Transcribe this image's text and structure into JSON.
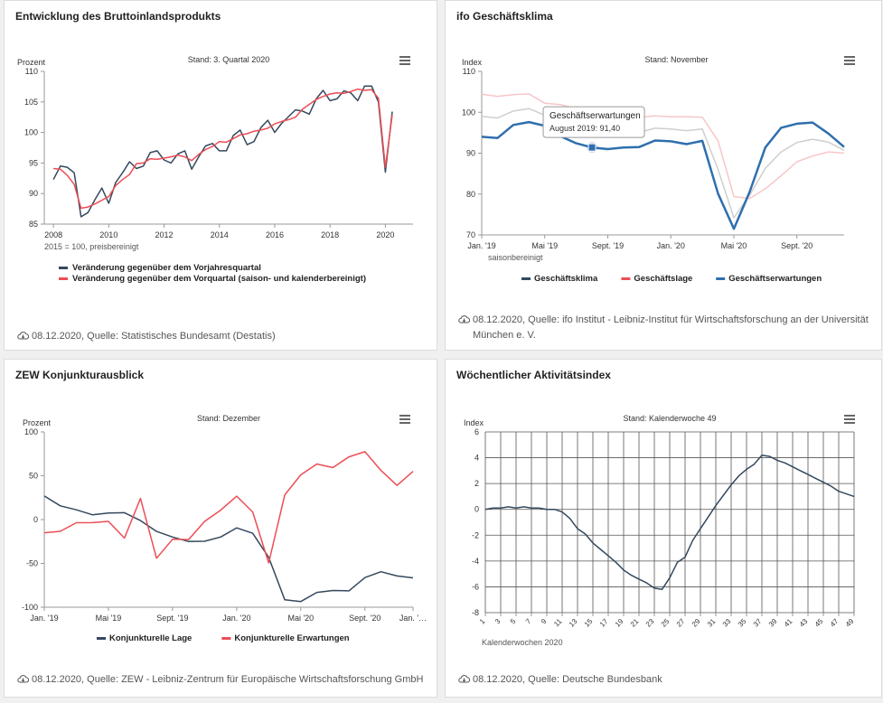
{
  "colors": {
    "dark": "#34495e",
    "red": "#ec4d55",
    "pink": "#f7c6c9",
    "gray": "#cfcfcf",
    "blue": "#2f6fae"
  },
  "cards": [
    {
      "title": "Entwicklung des Bruttoinlandsprodukts",
      "source": "08.12.2020, Quelle: Statistisches Bundesamt (Destatis)"
    },
    {
      "title": "ifo Geschäftsklima",
      "source": "08.12.2020, Quelle: ifo Institut - Leibniz-Institut für Wirtschaftsforschung an der Universität",
      "source2": "München e. V."
    },
    {
      "title": "ZEW Konjunkturausblick",
      "source": "08.12.2020, Quelle: ZEW - Leibniz-Zentrum für Europäische Wirtschaftsforschung GmbH"
    },
    {
      "title": "Wöchentlicher Aktivitätsindex",
      "source": "08.12.2020, Quelle: Deutsche Bundesbank"
    }
  ],
  "chart_data": [
    {
      "type": "line",
      "subtitle": "Stand: 3. Quartal 2020",
      "ylabel": "Prozent",
      "note": "2015 = 100, preisbereinigt",
      "xlim": [
        2007.67,
        2021.0
      ],
      "ylim": [
        85,
        110
      ],
      "yticks": [
        85,
        90,
        95,
        100,
        105,
        110
      ],
      "xticks": [
        2008,
        2010,
        2012,
        2014,
        2016,
        2018,
        2020
      ],
      "xticklabels": [
        "2008",
        "2010",
        "2012",
        "2014",
        "2016",
        "2018",
        "2020"
      ],
      "legend_position": "bottom",
      "series": [
        {
          "name": "Veränderung gegenüber dem Vorjahresquartal",
          "color": "#34495e",
          "points": [
            [
              2008.0,
              92.3
            ],
            [
              2008.25,
              94.5
            ],
            [
              2008.5,
              94.3
            ],
            [
              2008.75,
              93.4
            ],
            [
              2009.0,
              86.2
            ],
            [
              2009.25,
              86.9
            ],
            [
              2009.5,
              89.0
            ],
            [
              2009.75,
              90.9
            ],
            [
              2010.0,
              88.4
            ],
            [
              2010.25,
              91.8
            ],
            [
              2010.5,
              93.4
            ],
            [
              2010.75,
              95.2
            ],
            [
              2011.0,
              94.1
            ],
            [
              2011.25,
              94.5
            ],
            [
              2011.5,
              96.7
            ],
            [
              2011.75,
              97.0
            ],
            [
              2012.0,
              95.5
            ],
            [
              2012.25,
              95.0
            ],
            [
              2012.5,
              96.5
            ],
            [
              2012.75,
              97.0
            ],
            [
              2013.0,
              94.0
            ],
            [
              2013.25,
              96.0
            ],
            [
              2013.5,
              97.8
            ],
            [
              2013.75,
              98.2
            ],
            [
              2014.0,
              97.0
            ],
            [
              2014.25,
              97.0
            ],
            [
              2014.5,
              99.5
            ],
            [
              2014.75,
              100.4
            ],
            [
              2015.0,
              98.0
            ],
            [
              2015.25,
              98.5
            ],
            [
              2015.5,
              100.8
            ],
            [
              2015.75,
              102.0
            ],
            [
              2016.0,
              100.0
            ],
            [
              2016.25,
              101.5
            ],
            [
              2016.5,
              102.6
            ],
            [
              2016.75,
              103.7
            ],
            [
              2017.0,
              103.5
            ],
            [
              2017.25,
              103.0
            ],
            [
              2017.5,
              105.5
            ],
            [
              2017.75,
              106.9
            ],
            [
              2018.0,
              105.2
            ],
            [
              2018.25,
              105.5
            ],
            [
              2018.5,
              106.8
            ],
            [
              2018.75,
              106.5
            ],
            [
              2019.0,
              105.2
            ],
            [
              2019.25,
              107.6
            ],
            [
              2019.5,
              107.6
            ],
            [
              2019.75,
              105.0
            ],
            [
              2020.0,
              93.5
            ],
            [
              2020.25,
              103.4
            ]
          ]
        },
        {
          "name": "Veränderung gegenüber dem Vorquartal (saison- und kalenderbereinigt)",
          "color": "#ec4d55",
          "points": [
            [
              2008.0,
              94.1
            ],
            [
              2008.25,
              94.0
            ],
            [
              2008.5,
              93.0
            ],
            [
              2008.75,
              91.5
            ],
            [
              2009.0,
              87.6
            ],
            [
              2009.25,
              87.8
            ],
            [
              2009.5,
              88.3
            ],
            [
              2009.75,
              88.9
            ],
            [
              2010.0,
              89.5
            ],
            [
              2010.25,
              91.3
            ],
            [
              2010.5,
              92.3
            ],
            [
              2010.75,
              93.1
            ],
            [
              2011.0,
              94.9
            ],
            [
              2011.25,
              95.0
            ],
            [
              2011.5,
              95.7
            ],
            [
              2011.75,
              95.6
            ],
            [
              2012.0,
              95.8
            ],
            [
              2012.25,
              96.0
            ],
            [
              2012.5,
              96.3
            ],
            [
              2012.75,
              96.0
            ],
            [
              2013.0,
              95.4
            ],
            [
              2013.25,
              96.4
            ],
            [
              2013.5,
              97.2
            ],
            [
              2013.75,
              97.7
            ],
            [
              2014.0,
              98.5
            ],
            [
              2014.25,
              98.4
            ],
            [
              2014.5,
              99.0
            ],
            [
              2014.75,
              99.6
            ],
            [
              2015.0,
              99.8
            ],
            [
              2015.25,
              100.2
            ],
            [
              2015.5,
              100.4
            ],
            [
              2015.75,
              100.7
            ],
            [
              2016.0,
              101.4
            ],
            [
              2016.25,
              101.8
            ],
            [
              2016.5,
              102.1
            ],
            [
              2016.75,
              102.5
            ],
            [
              2017.0,
              103.8
            ],
            [
              2017.25,
              104.6
            ],
            [
              2017.5,
              105.4
            ],
            [
              2017.75,
              105.9
            ],
            [
              2018.0,
              106.3
            ],
            [
              2018.25,
              106.5
            ],
            [
              2018.5,
              106.4
            ],
            [
              2018.75,
              106.7
            ],
            [
              2019.0,
              107.1
            ],
            [
              2019.25,
              106.9
            ],
            [
              2019.5,
              107.0
            ],
            [
              2019.75,
              105.6
            ],
            [
              2020.0,
              94.3
            ],
            [
              2020.25,
              102.9
            ]
          ]
        }
      ]
    },
    {
      "type": "line",
      "subtitle": "Stand: November",
      "ylabel": "Index",
      "note": "saisonbereinigt",
      "ylim": [
        70,
        110
      ],
      "yticks": [
        70,
        80,
        90,
        100,
        110
      ],
      "xlim": [
        0,
        23
      ],
      "xticks": [
        0,
        4,
        8,
        12,
        16,
        20
      ],
      "xticklabels": [
        "Jan. '19",
        "Mai '19",
        "Sept. '19",
        "Jan. '20",
        "Mai '20",
        "Sept. '20"
      ],
      "legend_position": "bottom",
      "tooltip": {
        "title": "Geschäftserwartungen",
        "text": "August 2019: 91,40",
        "series_index": 2,
        "point_index": 7
      },
      "series": [
        {
          "name": "Geschäftsklima",
          "color": "#34495e",
          "faded_color": "#cfcfcf",
          "values": [
            99.0,
            98.6,
            100.3,
            100.9,
            99.3,
            97.8,
            96.6,
            94.8,
            94.6,
            94.7,
            95.1,
            96.1,
            95.9,
            95.5,
            95.9,
            86.0,
            74.2,
            79.7,
            86.3,
            90.3,
            92.6,
            93.4,
            92.7,
            90.7
          ]
        },
        {
          "name": "Geschäftslage",
          "color": "#ec4d55",
          "faded_color": "#f7c6c9",
          "values": [
            104.4,
            103.9,
            104.3,
            104.5,
            102.2,
            101.9,
            100.8,
            98.4,
            97.7,
            97.8,
            98.8,
            99.1,
            98.9,
            98.9,
            98.8,
            93.0,
            79.4,
            78.9,
            81.3,
            84.5,
            87.9,
            89.3,
            90.3,
            90.0
          ]
        },
        {
          "name": "Geschäftserwartungen",
          "color": "#2f6fae",
          "values": [
            94.0,
            93.7,
            96.9,
            97.6,
            96.7,
            94.1,
            92.4,
            91.4,
            91.0,
            91.4,
            91.5,
            93.1,
            92.9,
            92.2,
            93.0,
            80.1,
            71.5,
            80.5,
            91.4,
            96.2,
            97.2,
            97.5,
            94.8,
            91.5
          ]
        }
      ],
      "highlight_series": 2
    },
    {
      "type": "line",
      "subtitle": "Stand: Dezember",
      "ylabel": "Prozent",
      "ylim": [
        -100,
        100
      ],
      "yticks": [
        -100,
        -50,
        0,
        50,
        100
      ],
      "xlim": [
        0,
        23
      ],
      "xticks": [
        0,
        4,
        8,
        12,
        16,
        20,
        23
      ],
      "xticklabels": [
        "Jan. '19",
        "Mai '19",
        "Sept. '19",
        "Jan. '20",
        "Mai '20",
        "Sept. '20",
        "Jan. '…"
      ],
      "legend_position": "bottom",
      "series": [
        {
          "name": "Konjunkturelle Lage",
          "color": "#34495e",
          "values": [
            26.9,
            15.7,
            11.1,
            5.5,
            7.5,
            7.8,
            -1.1,
            -13.5,
            -19.9,
            -25.0,
            -24.7,
            -19.9,
            -9.5,
            -15.7,
            -43.1,
            -91.5,
            -93.5,
            -83.1,
            -80.9,
            -81.3,
            -66.2,
            -59.5,
            -64.3,
            -66.5
          ]
        },
        {
          "name": "Konjunkturelle Erwartungen",
          "color": "#ec4d55",
          "values": [
            -15.0,
            -13.4,
            -3.6,
            -3.5,
            -2.1,
            -21.1,
            24.1,
            -44.1,
            -22.5,
            -22.8,
            -2.1,
            10.7,
            26.7,
            8.7,
            -49.5,
            28.2,
            51.0,
            63.4,
            59.3,
            71.5,
            77.4,
            56.1,
            39.0,
            55.0
          ]
        }
      ]
    },
    {
      "type": "line",
      "subtitle": "Stand: Kalenderwoche 49",
      "ylabel": "Index",
      "xlabel": "Kalenderwochen 2020",
      "ylim": [
        -8,
        6
      ],
      "yticks": [
        -8,
        -6,
        -4,
        -2,
        0,
        2,
        4,
        6
      ],
      "xlim": [
        1,
        49
      ],
      "xticks": [
        1,
        3,
        5,
        7,
        9,
        11,
        13,
        15,
        17,
        19,
        21,
        23,
        25,
        27,
        29,
        31,
        33,
        35,
        37,
        39,
        41,
        43,
        45,
        47,
        49
      ],
      "grid": true,
      "series": [
        {
          "name": "",
          "color": "#34495e",
          "values": [
            0.0,
            0.1,
            0.1,
            0.2,
            0.1,
            0.2,
            0.1,
            0.1,
            0.0,
            0.0,
            -0.2,
            -0.7,
            -1.5,
            -1.9,
            -2.6,
            -3.1,
            -3.6,
            -4.1,
            -4.7,
            -5.1,
            -5.4,
            -5.7,
            -6.1,
            -6.2,
            -5.3,
            -4.1,
            -3.7,
            -2.4,
            -1.5,
            -0.6,
            0.3,
            1.1,
            1.9,
            2.6,
            3.1,
            3.5,
            4.2,
            4.1,
            3.8,
            3.6,
            3.3,
            3.0,
            2.7,
            2.4,
            2.1,
            1.8,
            1.4,
            1.2,
            1.0
          ]
        }
      ]
    }
  ]
}
